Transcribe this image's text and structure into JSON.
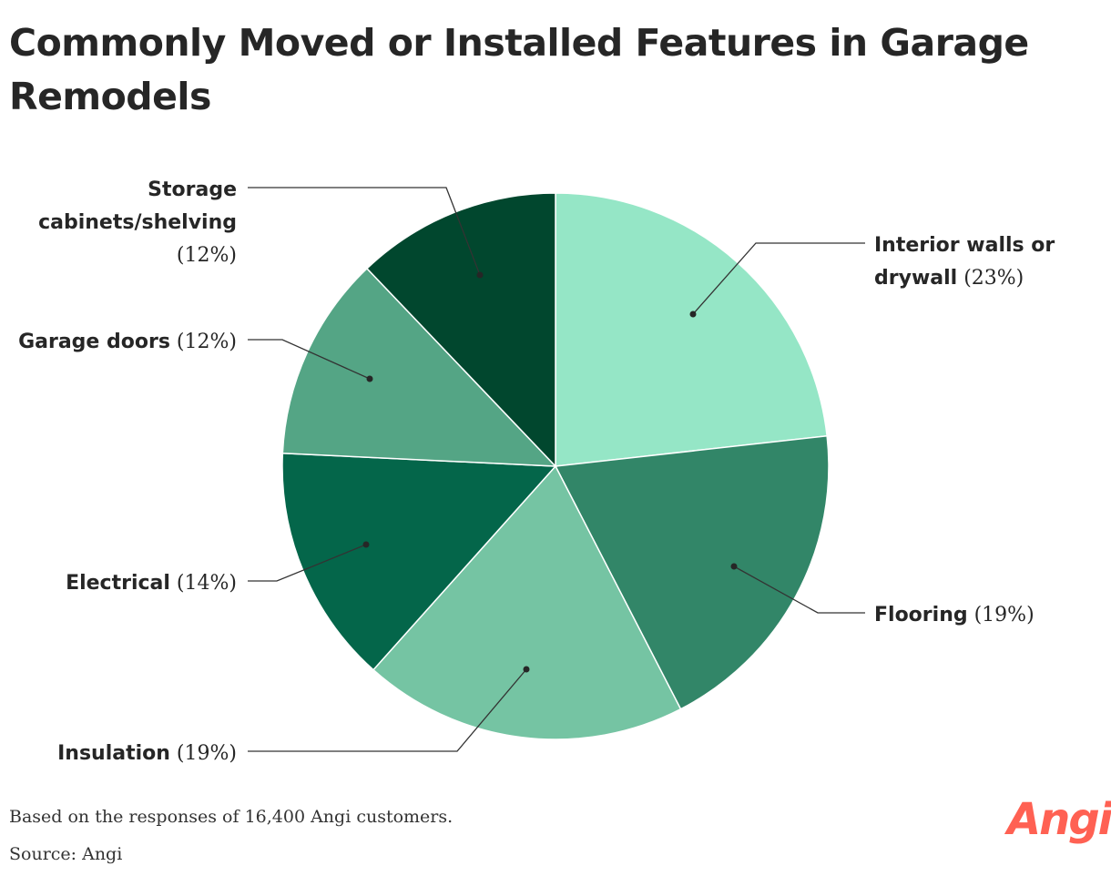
{
  "title": "Commonly Moved or Installed Features in Garage Remodels",
  "footer": {
    "note": "Based on the responses of 16,400 Angi customers.",
    "source": "Source: Angi"
  },
  "brand": {
    "logo_text": "Angi",
    "color": "#ff6153"
  },
  "chart_data": {
    "type": "pie",
    "title": "Commonly Moved or Installed Features in Garage Remodels",
    "start": "12 o'clock, clockwise",
    "slices": [
      {
        "label_lines": [
          "Interior walls or",
          "drywall"
        ],
        "pct_text": "(23%)",
        "value": 23,
        "color": "#95e6c6"
      },
      {
        "label_lines": [
          "Flooring"
        ],
        "pct_text": "(19%)",
        "value": 19,
        "color": "#328668"
      },
      {
        "label_lines": [
          "Insulation"
        ],
        "pct_text": "(19%)",
        "value": 19,
        "color": "#75c4a3"
      },
      {
        "label_lines": [
          "Electrical"
        ],
        "pct_text": "(14%)",
        "value": 14,
        "color": "#04664a"
      },
      {
        "label_lines": [
          "Garage doors"
        ],
        "pct_text": "(12%)",
        "value": 12,
        "color": "#54a585"
      },
      {
        "label_lines": [
          "Storage",
          "cabinets/shelving"
        ],
        "pct_text": "(12%)",
        "value": 12,
        "color": "#01472e"
      }
    ]
  }
}
